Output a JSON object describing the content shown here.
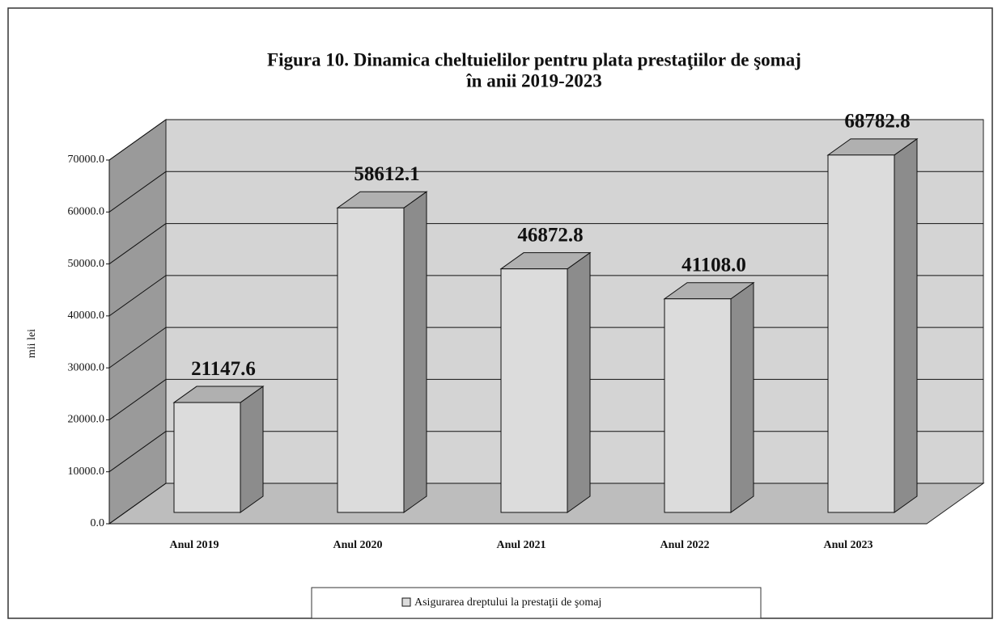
{
  "chart_data": {
    "type": "bar3d",
    "title": [
      "Figura 10. Dinamica cheltuielilor pentru plata  prestaţiilor de şomaj",
      "în anii 2019-2023"
    ],
    "ylabel": "mii lei",
    "categories": [
      "Anul 2019",
      "Anul 2020",
      "Anul 2021",
      "Anul 2022",
      "Anul 2023"
    ],
    "series": [
      {
        "name": "Asigurarea dreptului la prestaţii de şomaj",
        "color": "#dcdcdc",
        "values": [
          21147.6,
          58612.1,
          46872.8,
          41108.0,
          68782.8
        ],
        "value_labels": [
          "21147.6",
          "58612.1",
          "46872.8",
          "41108.0",
          "68782.8"
        ]
      }
    ],
    "ylim": [
      0,
      70000
    ],
    "yticks": [
      {
        "value": 0,
        "label": "0.0"
      },
      {
        "value": 10000,
        "label": "10000.0"
      },
      {
        "value": 20000,
        "label": "20000.0"
      },
      {
        "value": 30000,
        "label": "30000.0"
      },
      {
        "value": 40000,
        "label": "40000.0"
      },
      {
        "value": 50000,
        "label": "50000.0"
      },
      {
        "value": 60000,
        "label": "60000.0"
      },
      {
        "value": 70000,
        "label": "70000.0"
      }
    ],
    "grid": true,
    "legend": "bottom"
  }
}
